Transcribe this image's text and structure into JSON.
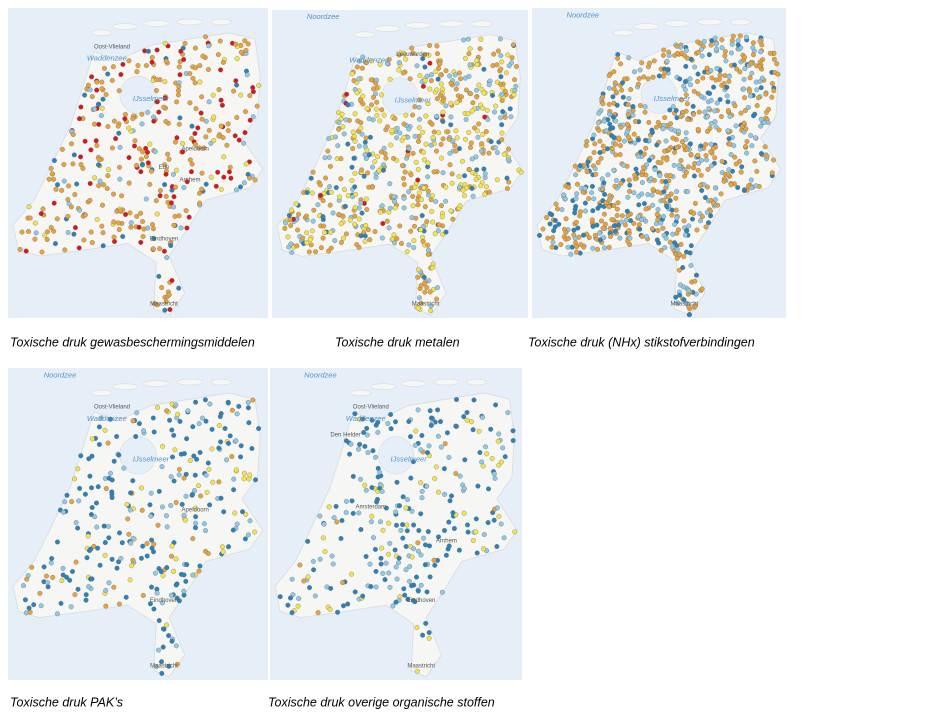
{
  "figures": [
    {
      "caption": "Toxische druk gewasbeschermingsmiddelen",
      "map_labels": [
        "Oost-Vlieland",
        "Waddenzee",
        "IJsselmeer",
        "Apeldoorn",
        "Ede",
        "Arnhem",
        "Eindhoven",
        "Maastricht"
      ]
    },
    {
      "caption": "Toxische druk metalen",
      "map_labels": [
        "Noordzee",
        "Waddenzee",
        "Leeuwarden",
        "IJsselmeer",
        "Maastricht"
      ]
    },
    {
      "caption": "Toxische druk (NHx) stikstofverbindingen",
      "map_labels": [
        "Noordzee",
        "IJsselmeer",
        "Maastricht"
      ]
    },
    {
      "caption": "Toxische druk PAK’s",
      "map_labels": [
        "Noordzee",
        "Oost-Vlieland",
        "Waddenzee",
        "IJsselmeer",
        "Apeldoorn",
        "Eindhoven",
        "Maastricht"
      ]
    },
    {
      "caption": "Toxische druk overige organische stoffen",
      "map_labels": [
        "Noordzee",
        "Oost-Vlieland",
        "Waddenzee",
        "Den Helder",
        "IJsselmeer",
        "Amsterdam",
        "Arnhem",
        "Eindhoven",
        "Maastricht"
      ]
    }
  ]
}
